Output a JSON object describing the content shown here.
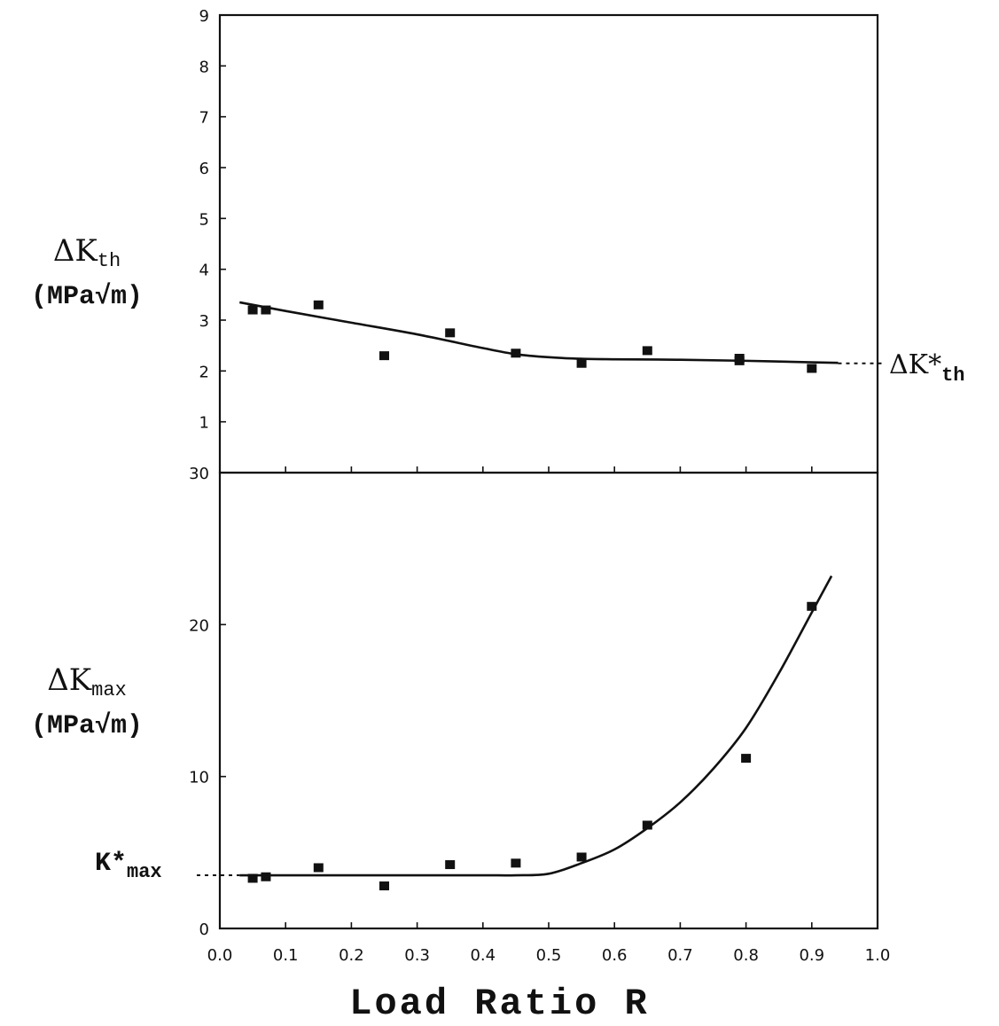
{
  "chart_data": [
    {
      "type": "scatter",
      "panel": "top",
      "ylabel_symbol": "ΔK",
      "ylabel_sub": "th",
      "ylabel_unit": "(MPa√m)",
      "xlabel": "",
      "xlim": [
        0.0,
        1.0
      ],
      "ylim": [
        0,
        9
      ],
      "y_ticks": [
        1,
        2,
        3,
        4,
        5,
        6,
        7,
        8
      ],
      "y_tick_labels": [
        "1",
        "2",
        "3",
        "4",
        "5",
        "6",
        "7",
        "8"
      ],
      "top_corner_label": "9",
      "grid": false,
      "series": [
        {
          "x": [
            0.05,
            0.07,
            0.15,
            0.25,
            0.35,
            0.45,
            0.55,
            0.65,
            0.79,
            0.79,
            0.9
          ],
          "y": [
            3.2,
            3.2,
            3.3,
            2.3,
            2.75,
            2.35,
            2.15,
            2.4,
            2.25,
            2.2,
            2.05
          ]
        }
      ],
      "fit_curve": {
        "x": [
          0.03,
          0.1,
          0.2,
          0.3,
          0.4,
          0.45,
          0.5,
          0.55,
          0.6,
          0.7,
          0.8,
          0.9,
          0.94
        ],
        "y": [
          3.35,
          3.18,
          2.95,
          2.72,
          2.45,
          2.33,
          2.27,
          2.24,
          2.23,
          2.22,
          2.2,
          2.17,
          2.16
        ]
      },
      "asymptote_label_symbol": "ΔK*",
      "asymptote_label_sub": "th",
      "asymptote_value": 2.15
    },
    {
      "type": "scatter",
      "panel": "bottom",
      "ylabel_symbol": "ΔK",
      "ylabel_sub": "max",
      "ylabel_unit": "(MPa√m)",
      "xlabel": "Load Ratio R",
      "xlim": [
        0.0,
        1.0
      ],
      "ylim": [
        0,
        30
      ],
      "y_ticks": [
        0,
        10,
        20,
        30
      ],
      "y_tick_labels": [
        "0",
        "10",
        "20",
        "30"
      ],
      "x_ticks": [
        0.0,
        0.1,
        0.2,
        0.3,
        0.4,
        0.5,
        0.6,
        0.7,
        0.8,
        0.9,
        1.0
      ],
      "x_tick_labels": [
        "0.0",
        "0.1",
        "0.2",
        "0.3",
        "0.4",
        "0.5",
        "0.6",
        "0.7",
        "0.8",
        "0.9",
        "1.0"
      ],
      "grid": false,
      "series": [
        {
          "x": [
            0.05,
            0.07,
            0.15,
            0.25,
            0.35,
            0.45,
            0.55,
            0.65,
            0.8,
            0.9
          ],
          "y": [
            3.3,
            3.4,
            4.0,
            2.8,
            4.2,
            4.3,
            4.7,
            6.8,
            11.2,
            21.2
          ]
        }
      ],
      "fit_curve": {
        "x": [
          0.03,
          0.1,
          0.2,
          0.3,
          0.4,
          0.45,
          0.5,
          0.55,
          0.6,
          0.65,
          0.7,
          0.75,
          0.8,
          0.85,
          0.9,
          0.93
        ],
        "y": [
          3.5,
          3.5,
          3.5,
          3.5,
          3.5,
          3.5,
          3.6,
          4.3,
          5.2,
          6.6,
          8.3,
          10.5,
          13.2,
          16.8,
          20.8,
          23.2
        ]
      },
      "asymptote_label_symbol": "K*",
      "asymptote_label_sub": "max",
      "asymptote_value": 3.5
    }
  ]
}
